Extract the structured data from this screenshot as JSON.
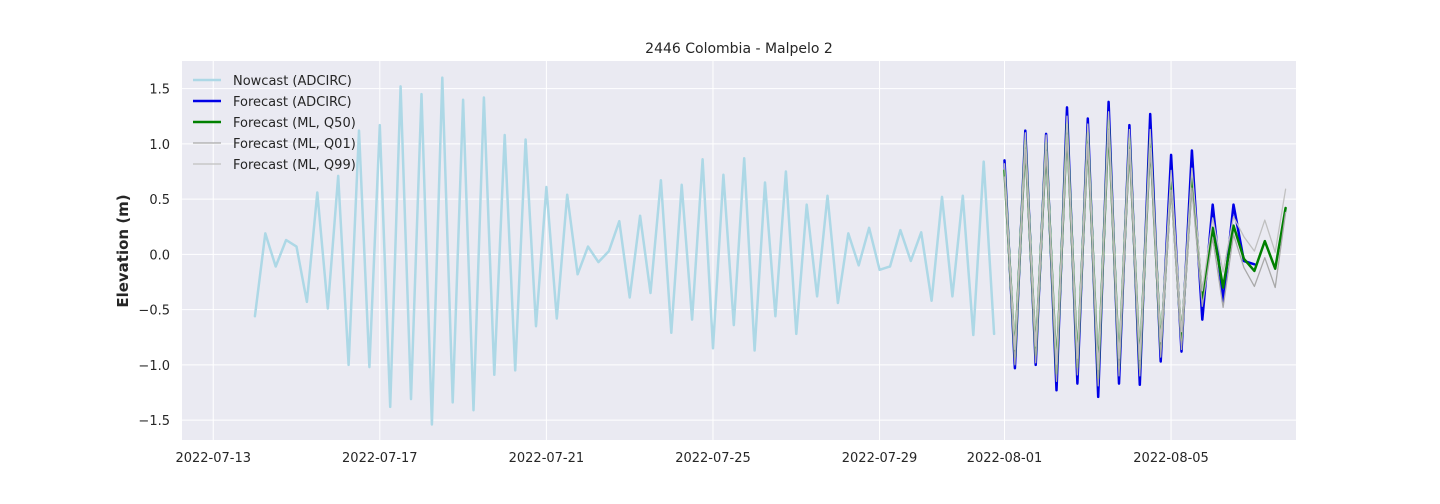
{
  "chart_data": {
    "type": "line",
    "title": "2446 Colombia - Malpelo 2",
    "xlabel": "",
    "ylabel": "Elevation (m)",
    "x_axis": {
      "type": "date",
      "range": [
        "2022-07-12T06:00",
        "2022-08-08T00:00"
      ],
      "ticks": [
        {
          "value": "2022-07-13T00:00",
          "label": "2022-07-13"
        },
        {
          "value": "2022-07-17T00:00",
          "label": "2022-07-17"
        },
        {
          "value": "2022-07-21T00:00",
          "label": "2022-07-21"
        },
        {
          "value": "2022-07-25T00:00",
          "label": "2022-07-25"
        },
        {
          "value": "2022-07-29T00:00",
          "label": "2022-07-29"
        },
        {
          "value": "2022-08-01T00:00",
          "label": "2022-08-01"
        },
        {
          "value": "2022-08-05T00:00",
          "label": "2022-08-05"
        }
      ]
    },
    "y_axis": {
      "range": [
        -1.68,
        1.75
      ],
      "ticks": [
        {
          "value": -1.5,
          "label": "−1.5"
        },
        {
          "value": -1.0,
          "label": "−1.0"
        },
        {
          "value": -0.5,
          "label": "−0.5"
        },
        {
          "value": 0.0,
          "label": "0.0"
        },
        {
          "value": 0.5,
          "label": "0.5"
        },
        {
          "value": 1.0,
          "label": "1.0"
        },
        {
          "value": 1.5,
          "label": "1.5"
        }
      ]
    },
    "grid": true,
    "legend_position": "top-left",
    "series": [
      {
        "name": "Nowcast (ADCIRC)",
        "color": "#add8e6",
        "width": 2.5,
        "points": [
          [
            "2022-07-14T00:00",
            -0.56
          ],
          [
            "2022-07-14T06:00",
            0.19
          ],
          [
            "2022-07-14T12:00",
            -0.11
          ],
          [
            "2022-07-14T18:00",
            0.13
          ],
          [
            "2022-07-15T00:00",
            0.07
          ],
          [
            "2022-07-15T06:00",
            -0.43
          ],
          [
            "2022-07-15T12:00",
            0.56
          ],
          [
            "2022-07-15T18:00",
            -0.49
          ],
          [
            "2022-07-16T00:00",
            0.71
          ],
          [
            "2022-07-16T06:00",
            -1.0
          ],
          [
            "2022-07-16T12:00",
            1.12
          ],
          [
            "2022-07-16T18:00",
            -1.02
          ],
          [
            "2022-07-17T00:00",
            1.17
          ],
          [
            "2022-07-17T06:00",
            -1.38
          ],
          [
            "2022-07-17T12:00",
            1.52
          ],
          [
            "2022-07-17T18:00",
            -1.31
          ],
          [
            "2022-07-18T00:00",
            1.45
          ],
          [
            "2022-07-18T06:00",
            -1.54
          ],
          [
            "2022-07-18T12:00",
            1.6
          ],
          [
            "2022-07-18T18:00",
            -1.34
          ],
          [
            "2022-07-19T00:00",
            1.4
          ],
          [
            "2022-07-19T06:00",
            -1.41
          ],
          [
            "2022-07-19T12:00",
            1.42
          ],
          [
            "2022-07-19T18:00",
            -1.09
          ],
          [
            "2022-07-20T00:00",
            1.08
          ],
          [
            "2022-07-20T06:00",
            -1.05
          ],
          [
            "2022-07-20T12:00",
            1.04
          ],
          [
            "2022-07-20T18:00",
            -0.65
          ],
          [
            "2022-07-21T00:00",
            0.61
          ],
          [
            "2022-07-21T06:00",
            -0.58
          ],
          [
            "2022-07-21T12:00",
            0.54
          ],
          [
            "2022-07-21T18:00",
            -0.18
          ],
          [
            "2022-07-22T00:00",
            0.07
          ],
          [
            "2022-07-22T06:00",
            -0.07
          ],
          [
            "2022-07-22T12:00",
            0.03
          ],
          [
            "2022-07-22T18:00",
            0.3
          ],
          [
            "2022-07-23T00:00",
            -0.39
          ],
          [
            "2022-07-23T06:00",
            0.35
          ],
          [
            "2022-07-23T12:00",
            -0.35
          ],
          [
            "2022-07-23T18:00",
            0.67
          ],
          [
            "2022-07-24T00:00",
            -0.71
          ],
          [
            "2022-07-24T06:00",
            0.63
          ],
          [
            "2022-07-24T12:00",
            -0.59
          ],
          [
            "2022-07-24T18:00",
            0.86
          ],
          [
            "2022-07-25T00:00",
            -0.85
          ],
          [
            "2022-07-25T06:00",
            0.72
          ],
          [
            "2022-07-25T12:00",
            -0.64
          ],
          [
            "2022-07-25T18:00",
            0.87
          ],
          [
            "2022-07-26T00:00",
            -0.87
          ],
          [
            "2022-07-26T06:00",
            0.65
          ],
          [
            "2022-07-26T12:00",
            -0.56
          ],
          [
            "2022-07-26T18:00",
            0.75
          ],
          [
            "2022-07-27T00:00",
            -0.72
          ],
          [
            "2022-07-27T06:00",
            0.45
          ],
          [
            "2022-07-27T12:00",
            -0.38
          ],
          [
            "2022-07-27T18:00",
            0.53
          ],
          [
            "2022-07-28T00:00",
            -0.44
          ],
          [
            "2022-07-28T06:00",
            0.19
          ],
          [
            "2022-07-28T12:00",
            -0.1
          ],
          [
            "2022-07-28T18:00",
            0.24
          ],
          [
            "2022-07-29T00:00",
            -0.14
          ],
          [
            "2022-07-29T06:00",
            -0.11
          ],
          [
            "2022-07-29T12:00",
            0.22
          ],
          [
            "2022-07-29T18:00",
            -0.06
          ],
          [
            "2022-07-30T00:00",
            0.2
          ],
          [
            "2022-07-30T06:00",
            -0.42
          ],
          [
            "2022-07-30T12:00",
            0.52
          ],
          [
            "2022-07-30T18:00",
            -0.38
          ],
          [
            "2022-07-31T00:00",
            0.53
          ],
          [
            "2022-07-31T06:00",
            -0.73
          ],
          [
            "2022-07-31T12:00",
            0.84
          ],
          [
            "2022-07-31T18:00",
            -0.72
          ]
        ]
      },
      {
        "name": "Forecast (ADCIRC)",
        "color": "#0000e6",
        "width": 2.5,
        "points": [
          [
            "2022-08-01T00:00",
            0.85
          ],
          [
            "2022-08-01T06:00",
            -1.03
          ],
          [
            "2022-08-01T12:00",
            1.12
          ],
          [
            "2022-08-01T18:00",
            -1.0
          ],
          [
            "2022-08-02T00:00",
            1.09
          ],
          [
            "2022-08-02T06:00",
            -1.23
          ],
          [
            "2022-08-02T12:00",
            1.33
          ],
          [
            "2022-08-02T18:00",
            -1.17
          ],
          [
            "2022-08-03T00:00",
            1.23
          ],
          [
            "2022-08-03T06:00",
            -1.29
          ],
          [
            "2022-08-03T12:00",
            1.38
          ],
          [
            "2022-08-03T18:00",
            -1.17
          ],
          [
            "2022-08-04T00:00",
            1.17
          ],
          [
            "2022-08-04T06:00",
            -1.18
          ],
          [
            "2022-08-04T12:00",
            1.27
          ],
          [
            "2022-08-04T18:00",
            -0.97
          ],
          [
            "2022-08-05T00:00",
            0.9
          ],
          [
            "2022-08-05T06:00",
            -0.88
          ],
          [
            "2022-08-05T12:00",
            0.94
          ],
          [
            "2022-08-05T18:00",
            -0.59
          ],
          [
            "2022-08-06T00:00",
            0.45
          ],
          [
            "2022-08-06T06:00",
            -0.43
          ],
          [
            "2022-08-06T12:00",
            0.45
          ],
          [
            "2022-08-06T18:00",
            -0.06
          ],
          [
            "2022-08-07T00:00",
            -0.09
          ]
        ]
      },
      {
        "name": "Forecast (ML, Q50)",
        "color": "#008000",
        "width": 2.5,
        "points": [
          [
            "2022-08-01T00:00",
            0.76
          ],
          [
            "2022-08-01T06:00",
            -0.93
          ],
          [
            "2022-08-01T12:00",
            1.03
          ],
          [
            "2022-08-01T18:00",
            -0.91
          ],
          [
            "2022-08-02T00:00",
            1.01
          ],
          [
            "2022-08-02T06:00",
            -1.08
          ],
          [
            "2022-08-02T12:00",
            1.18
          ],
          [
            "2022-08-02T18:00",
            -1.02
          ],
          [
            "2022-08-03T00:00",
            1.1
          ],
          [
            "2022-08-03T06:00",
            -1.12
          ],
          [
            "2022-08-03T12:00",
            1.21
          ],
          [
            "2022-08-03T18:00",
            -1.02
          ],
          [
            "2022-08-04T00:00",
            1.05
          ],
          [
            "2022-08-04T06:00",
            -1.03
          ],
          [
            "2022-08-04T12:00",
            1.05
          ],
          [
            "2022-08-04T18:00",
            -0.86
          ],
          [
            "2022-08-05T00:00",
            0.67
          ],
          [
            "2022-08-05T06:00",
            -0.78
          ],
          [
            "2022-08-05T12:00",
            0.7
          ],
          [
            "2022-08-05T18:00",
            -0.4
          ],
          [
            "2022-08-06T00:00",
            0.24
          ],
          [
            "2022-08-06T06:00",
            -0.3
          ],
          [
            "2022-08-06T12:00",
            0.26
          ],
          [
            "2022-08-06T18:00",
            -0.04
          ],
          [
            "2022-08-07T00:00",
            -0.15
          ],
          [
            "2022-08-07T06:00",
            0.12
          ],
          [
            "2022-08-07T12:00",
            -0.13
          ],
          [
            "2022-08-07T18:00",
            0.42
          ]
        ]
      },
      {
        "name": "Forecast (ML, Q01)",
        "color": "#a9a9a9",
        "width": 1.3,
        "points": [
          [
            "2022-08-01T00:00",
            0.7
          ],
          [
            "2022-08-01T06:00",
            -1.0
          ],
          [
            "2022-08-01T12:00",
            0.95
          ],
          [
            "2022-08-01T18:00",
            -0.98
          ],
          [
            "2022-08-02T00:00",
            0.93
          ],
          [
            "2022-08-02T06:00",
            -1.15
          ],
          [
            "2022-08-02T12:00",
            1.08
          ],
          [
            "2022-08-02T18:00",
            -1.09
          ],
          [
            "2022-08-03T00:00",
            1.0
          ],
          [
            "2022-08-03T06:00",
            -1.19
          ],
          [
            "2022-08-03T12:00",
            1.12
          ],
          [
            "2022-08-03T18:00",
            -1.1
          ],
          [
            "2022-08-04T00:00",
            0.95
          ],
          [
            "2022-08-04T06:00",
            -1.1
          ],
          [
            "2022-08-04T12:00",
            0.96
          ],
          [
            "2022-08-04T18:00",
            -0.93
          ],
          [
            "2022-08-05T00:00",
            0.58
          ],
          [
            "2022-08-05T06:00",
            -0.86
          ],
          [
            "2022-08-05T12:00",
            0.6
          ],
          [
            "2022-08-05T18:00",
            -0.47
          ],
          [
            "2022-08-06T00:00",
            0.15
          ],
          [
            "2022-08-06T06:00",
            -0.48
          ],
          [
            "2022-08-06T12:00",
            0.18
          ],
          [
            "2022-08-06T18:00",
            -0.12
          ],
          [
            "2022-08-07T00:00",
            -0.29
          ],
          [
            "2022-08-07T06:00",
            -0.03
          ],
          [
            "2022-08-07T12:00",
            -0.3
          ],
          [
            "2022-08-07T18:00",
            0.38
          ]
        ]
      },
      {
        "name": "Forecast (ML, Q99)",
        "color": "#c0c0c0",
        "width": 1.3,
        "points": [
          [
            "2022-08-01T00:00",
            0.82
          ],
          [
            "2022-08-01T06:00",
            -0.86
          ],
          [
            "2022-08-01T12:00",
            1.1
          ],
          [
            "2022-08-01T18:00",
            -0.83
          ],
          [
            "2022-08-02T00:00",
            1.08
          ],
          [
            "2022-08-02T06:00",
            -1.0
          ],
          [
            "2022-08-02T12:00",
            1.25
          ],
          [
            "2022-08-02T18:00",
            -0.94
          ],
          [
            "2022-08-03T00:00",
            1.18
          ],
          [
            "2022-08-03T06:00",
            -1.04
          ],
          [
            "2022-08-03T12:00",
            1.29
          ],
          [
            "2022-08-03T18:00",
            -0.94
          ],
          [
            "2022-08-04T00:00",
            1.13
          ],
          [
            "2022-08-04T06:00",
            -0.95
          ],
          [
            "2022-08-04T12:00",
            1.13
          ],
          [
            "2022-08-04T18:00",
            -0.79
          ],
          [
            "2022-08-05T00:00",
            0.76
          ],
          [
            "2022-08-05T06:00",
            -0.7
          ],
          [
            "2022-08-05T12:00",
            0.78
          ],
          [
            "2022-08-05T18:00",
            -0.33
          ],
          [
            "2022-08-06T00:00",
            0.33
          ],
          [
            "2022-08-06T06:00",
            -0.16
          ],
          [
            "2022-08-06T12:00",
            0.34
          ],
          [
            "2022-08-06T18:00",
            0.16
          ],
          [
            "2022-08-07T00:00",
            0.03
          ],
          [
            "2022-08-07T06:00",
            0.31
          ],
          [
            "2022-08-07T12:00",
            0.02
          ],
          [
            "2022-08-07T18:00",
            0.59
          ]
        ]
      }
    ],
    "legend": [
      {
        "label": "Nowcast (ADCIRC)",
        "color": "#add8e6"
      },
      {
        "label": "Forecast (ADCIRC)",
        "color": "#0000e6"
      },
      {
        "label": "Forecast (ML, Q50)",
        "color": "#008000"
      },
      {
        "label": "Forecast (ML, Q01)",
        "color": "#a9a9a9"
      },
      {
        "label": "Forecast (ML, Q99)",
        "color": "#c0c0c0"
      }
    ],
    "colors": {
      "plot_background": "#eaeaf2",
      "grid": "#ffffff",
      "text": "#262626"
    }
  }
}
